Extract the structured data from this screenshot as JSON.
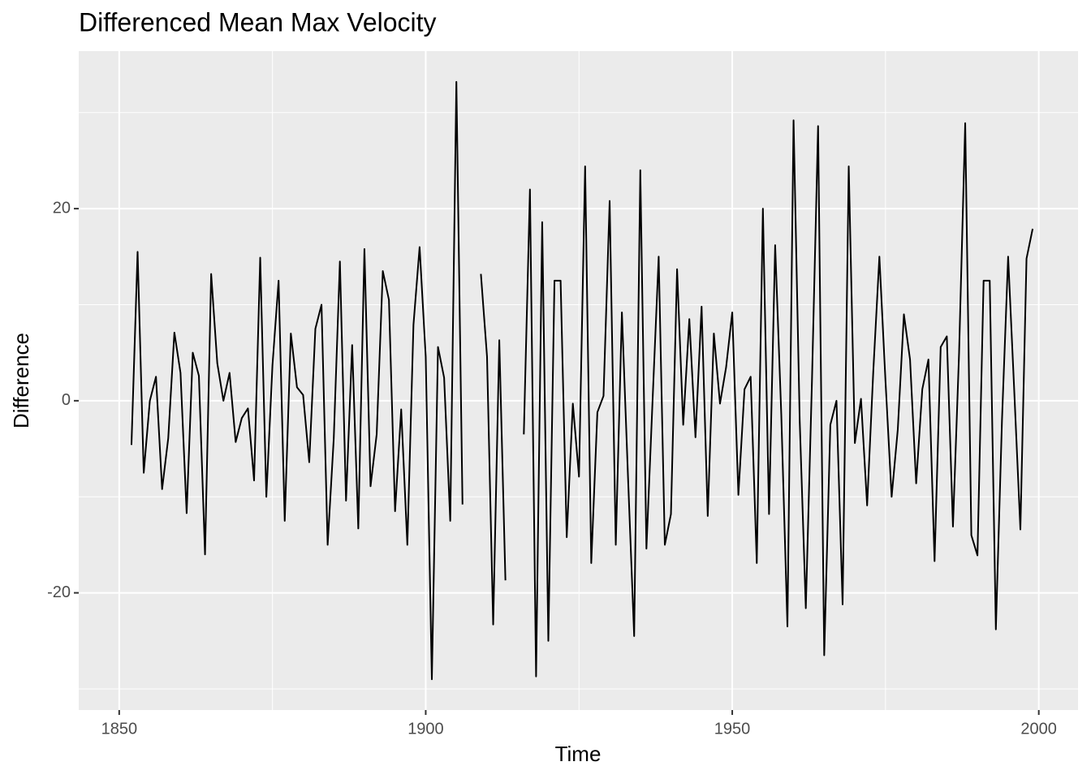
{
  "chart_data": {
    "type": "line",
    "title": "Differenced Mean Max Velocity",
    "x_label": "Time",
    "y_label": "Difference",
    "x": [
      1852,
      1853,
      1854,
      1855,
      1856,
      1857,
      1858,
      1859,
      1860,
      1861,
      1862,
      1863,
      1864,
      1865,
      1866,
      1867,
      1868,
      1869,
      1870,
      1871,
      1872,
      1873,
      1874,
      1875,
      1876,
      1877,
      1878,
      1879,
      1880,
      1881,
      1882,
      1883,
      1884,
      1885,
      1886,
      1887,
      1888,
      1889,
      1890,
      1891,
      1892,
      1893,
      1894,
      1895,
      1896,
      1897,
      1898,
      1899,
      1900,
      1901,
      1902,
      1903,
      1904,
      1905,
      1906,
      1907,
      1908,
      1909,
      1910,
      1911,
      1912,
      1913,
      1914,
      1915,
      1916,
      1917,
      1918,
      1919,
      1920,
      1921,
      1922,
      1923,
      1924,
      1925,
      1926,
      1927,
      1928,
      1929,
      1930,
      1931,
      1932,
      1933,
      1934,
      1935,
      1936,
      1937,
      1938,
      1939,
      1940,
      1941,
      1942,
      1943,
      1944,
      1945,
      1946,
      1947,
      1948,
      1949,
      1950,
      1951,
      1952,
      1953,
      1954,
      1955,
      1956,
      1957,
      1958,
      1959,
      1960,
      1961,
      1962,
      1963,
      1964,
      1965,
      1966,
      1967,
      1968,
      1969,
      1970,
      1971,
      1972,
      1973,
      1974,
      1975,
      1976,
      1977,
      1978,
      1979,
      1980,
      1981,
      1982,
      1983,
      1984,
      1985,
      1986,
      1987,
      1988,
      1989,
      1990,
      1991,
      1992,
      1993,
      1994,
      1995,
      1996,
      1997,
      1998,
      1999
    ],
    "values": [
      -4.6,
      15.5,
      -7.5,
      0,
      2.5,
      -9.2,
      -3.9,
      7.1,
      2.9,
      -11.7,
      5,
      2.6,
      -16,
      13.2,
      3.9,
      0,
      2.9,
      -4.3,
      -1.8,
      -0.8,
      -8.3,
      14.9,
      -10,
      3.7,
      12.5,
      -12.5,
      7,
      1.4,
      0.6,
      -6.4,
      7.5,
      10,
      -15,
      -3.9,
      14.5,
      -10.4,
      5.8,
      -13.3,
      15.8,
      -8.9,
      -3.5,
      13.5,
      10.5,
      -11.5,
      -0.9,
      -15,
      7.9,
      16,
      4.6,
      -29,
      5.6,
      2.4,
      -12.5,
      33.2,
      -10.8,
      null,
      null,
      13.2,
      4.6,
      -23.3,
      6.3,
      -18.7,
      null,
      null,
      -3.5,
      22,
      -28.7,
      18.6,
      -25,
      12.5,
      12.5,
      -14.2,
      -0.3,
      -7.9,
      24.4,
      -16.9,
      -1.2,
      0.5,
      20.8,
      -15,
      9.2,
      -8,
      -24.5,
      24,
      -15.4,
      0,
      15,
      -15,
      -11.8,
      13.7,
      -2.5,
      8.5,
      -3.8,
      9.8,
      -12,
      7,
      -0.3,
      3.5,
      9.2,
      -9.8,
      1.2,
      2.5,
      -16.9,
      20,
      -11.8,
      16.2,
      -1.5,
      -23.5,
      29.2,
      -2,
      -21.6,
      2,
      28.6,
      -26.5,
      -2.5,
      0,
      -21.2,
      24.4,
      -4.4,
      0.2,
      -10.9,
      3,
      15,
      2,
      -10,
      -3,
      9,
      4.3,
      -8.6,
      1.2,
      4.3,
      -16.7,
      5.6,
      6.7,
      -13.1,
      5,
      28.9,
      -14,
      -16.1,
      12.5,
      12.5,
      -23.8,
      -2,
      15,
      1,
      -13.4,
      14.8,
      17.9
    ],
    "color": "#000000",
    "xlim": [
      1843.4,
      2006.4
    ],
    "xticks": [
      1850,
      1900,
      1950,
      2000
    ],
    "minor_xticks": [
      1875,
      1925,
      1975
    ],
    "ylim": [
      -32.2,
      36.4
    ],
    "yticks": [
      -20,
      0,
      20
    ],
    "minor_yticks": [
      -30,
      -10,
      10,
      30
    ],
    "grid": true
  }
}
